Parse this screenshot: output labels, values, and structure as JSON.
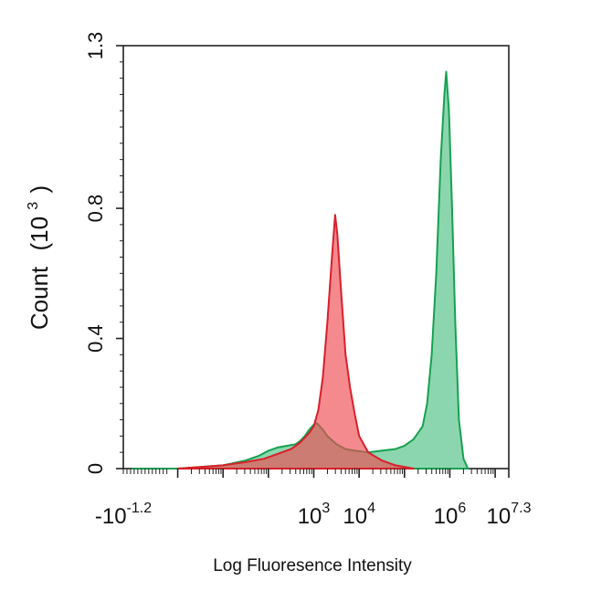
{
  "chart_data": {
    "type": "area",
    "xlabel": "Log Fluoresence Intensity",
    "ylabel": "Count",
    "ylabel_unit_base": "(10",
    "ylabel_unit_exp": "3",
    "ylabel_unit_close": ")",
    "x_scale": "log",
    "xlim": [
      -1.2,
      7.3
    ],
    "ylim": [
      0,
      1.3
    ],
    "y_ticks": [
      {
        "value": 0,
        "label": "0"
      },
      {
        "value": 0.4,
        "label": "0.4"
      },
      {
        "value": 0.8,
        "label": "0.8"
      },
      {
        "value": 1.3,
        "label": "1.3"
      }
    ],
    "x_ticks": [
      {
        "value": -1.2,
        "base": "-10",
        "exp": "-1.2"
      },
      {
        "value": 3,
        "base": "10",
        "exp": "3"
      },
      {
        "value": 4,
        "base": "10",
        "exp": "4"
      },
      {
        "value": 6,
        "base": "10",
        "exp": "6"
      },
      {
        "value": 7.3,
        "base": "10",
        "exp": "7.3"
      }
    ],
    "series": [
      {
        "fill": "#2db46e",
        "stroke": "#16a150",
        "fill_opacity": 0.55,
        "points": [
          [
            -1.0,
            0.0
          ],
          [
            0.0,
            0.0
          ],
          [
            0.5,
            0.005
          ],
          [
            1.0,
            0.01
          ],
          [
            1.5,
            0.025
          ],
          [
            1.8,
            0.04
          ],
          [
            2.0,
            0.055
          ],
          [
            2.2,
            0.065
          ],
          [
            2.4,
            0.07
          ],
          [
            2.6,
            0.075
          ],
          [
            2.7,
            0.085
          ],
          [
            2.8,
            0.1
          ],
          [
            2.9,
            0.12
          ],
          [
            3.0,
            0.135
          ],
          [
            3.05,
            0.14
          ],
          [
            3.1,
            0.135
          ],
          [
            3.2,
            0.12
          ],
          [
            3.3,
            0.1
          ],
          [
            3.5,
            0.075
          ],
          [
            3.7,
            0.06
          ],
          [
            3.9,
            0.055
          ],
          [
            4.2,
            0.05
          ],
          [
            4.5,
            0.055
          ],
          [
            4.8,
            0.06
          ],
          [
            5.0,
            0.07
          ],
          [
            5.2,
            0.09
          ],
          [
            5.4,
            0.13
          ],
          [
            5.5,
            0.2
          ],
          [
            5.6,
            0.35
          ],
          [
            5.7,
            0.6
          ],
          [
            5.8,
            0.95
          ],
          [
            5.88,
            1.15
          ],
          [
            5.92,
            1.22
          ],
          [
            5.98,
            1.1
          ],
          [
            6.05,
            0.8
          ],
          [
            6.12,
            0.45
          ],
          [
            6.2,
            0.15
          ],
          [
            6.3,
            0.03
          ],
          [
            6.4,
            0.0
          ]
        ]
      },
      {
        "fill": "#ee4b52",
        "stroke": "#d8202a",
        "fill_opacity": 0.65,
        "points": [
          [
            0.0,
            0.0
          ],
          [
            0.5,
            0.005
          ],
          [
            1.0,
            0.01
          ],
          [
            1.5,
            0.02
          ],
          [
            1.9,
            0.03
          ],
          [
            2.2,
            0.045
          ],
          [
            2.5,
            0.06
          ],
          [
            2.7,
            0.08
          ],
          [
            2.9,
            0.11
          ],
          [
            3.0,
            0.13
          ],
          [
            3.1,
            0.18
          ],
          [
            3.2,
            0.28
          ],
          [
            3.3,
            0.45
          ],
          [
            3.4,
            0.65
          ],
          [
            3.47,
            0.78
          ],
          [
            3.52,
            0.72
          ],
          [
            3.6,
            0.55
          ],
          [
            3.7,
            0.35
          ],
          [
            3.8,
            0.25
          ],
          [
            3.9,
            0.17
          ],
          [
            4.0,
            0.1
          ],
          [
            4.2,
            0.05
          ],
          [
            4.5,
            0.025
          ],
          [
            4.8,
            0.01
          ],
          [
            5.2,
            0.0
          ]
        ]
      }
    ]
  }
}
